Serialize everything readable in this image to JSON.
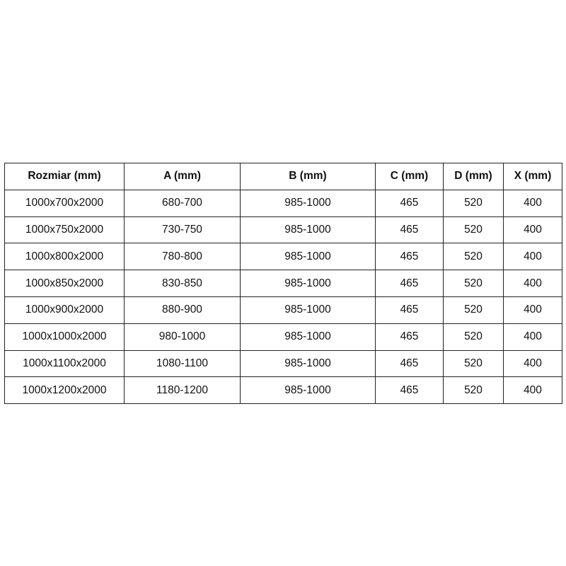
{
  "table": {
    "headers": [
      "Rozmiar (mm)",
      "A (mm)",
      "B (mm)",
      "C (mm)",
      "D (mm)",
      "X (mm)"
    ],
    "rows": [
      [
        "1000x700x2000",
        "680-700",
        "985-1000",
        "465",
        "520",
        "400"
      ],
      [
        "1000x750x2000",
        "730-750",
        "985-1000",
        "465",
        "520",
        "400"
      ],
      [
        "1000x800x2000",
        "780-800",
        "985-1000",
        "465",
        "520",
        "400"
      ],
      [
        "1000x850x2000",
        "830-850",
        "985-1000",
        "465",
        "520",
        "400"
      ],
      [
        "1000x900x2000",
        "880-900",
        "985-1000",
        "465",
        "520",
        "400"
      ],
      [
        "1000x1000x2000",
        "980-1000",
        "985-1000",
        "465",
        "520",
        "400"
      ],
      [
        "1000x1100x2000",
        "1080-1100",
        "985-1000",
        "465",
        "520",
        "400"
      ],
      [
        "1000x1200x2000",
        "1180-1200",
        "985-1000",
        "465",
        "520",
        "400"
      ]
    ]
  }
}
